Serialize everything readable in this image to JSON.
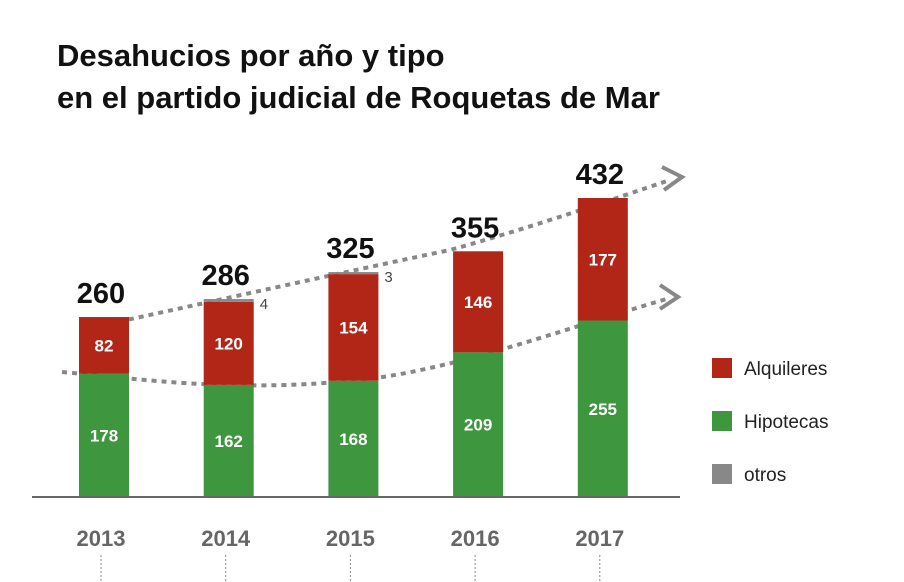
{
  "chart_data": {
    "type": "bar",
    "stacked": true,
    "title_lines": [
      "Desahucios por año y tipo",
      "en el partido judicial de Roquetas de Mar"
    ],
    "categories": [
      "2013",
      "2014",
      "2015",
      "2016",
      "2017"
    ],
    "series": [
      {
        "name": "Hipotecas",
        "color": "#3e963f",
        "values": [
          178,
          162,
          168,
          209,
          255
        ]
      },
      {
        "name": "Alquileres",
        "color": "#b22618",
        "values": [
          82,
          120,
          154,
          146,
          177
        ]
      },
      {
        "name": "otros",
        "color": "#888888",
        "values": [
          0,
          4,
          3,
          0,
          0
        ]
      }
    ],
    "totals": [
      260,
      286,
      325,
      355,
      432
    ],
    "legend_order": [
      "Alquileres",
      "Hipotecas",
      "otros"
    ],
    "legend_position": "right",
    "ylim": [
      0,
      432
    ],
    "grid": false
  }
}
